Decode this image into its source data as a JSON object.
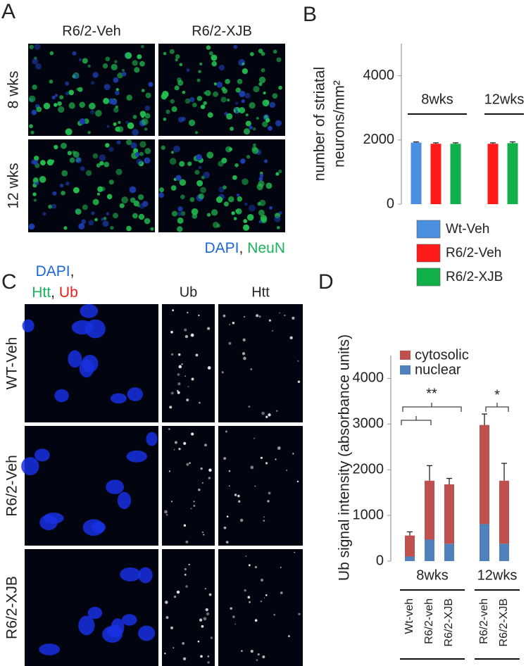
{
  "figure": {
    "panel_labels": [
      "A",
      "B",
      "C",
      "D"
    ],
    "panel_A": {
      "columns": [
        "R6/2-Veh",
        "R6/2-XJB"
      ],
      "rows": [
        "8 wks",
        "12 wks"
      ],
      "stain": [
        {
          "text": "DAPI",
          "color": "#1a66d9"
        },
        {
          "text": ",",
          "color": "#222222"
        },
        {
          "text": "NeuN",
          "color": "#19b35a"
        }
      ]
    },
    "panel_C": {
      "stain": [
        [
          {
            "text": "DAPI",
            "color": "#1a66d9"
          },
          {
            "text": ",",
            "color": "#222222"
          }
        ],
        [
          {
            "text": "Htt",
            "color": "#19b35a"
          },
          {
            "text": ",",
            "color": "#222222"
          },
          {
            "text": "Ub",
            "color": "#e8201a"
          }
        ]
      ],
      "columns": [
        "Ub",
        "Htt"
      ],
      "rows": [
        "WT-Veh",
        "R6/2-Veh",
        "R6/2-XJB"
      ]
    }
  },
  "chart_data": [
    {
      "type": "bar",
      "y_label": [
        "number of striatal",
        "neurons/mm²"
      ],
      "categories": [
        "8wks",
        "12wks"
      ],
      "series": [
        {
          "name": "Wt-Veh",
          "color": "#4a8fe0",
          "values": [
            1920,
            null
          ],
          "errors": [
            20,
            null
          ]
        },
        {
          "name": "R6/2-Veh",
          "color": "#ff1a1a",
          "values": [
            1880,
            1880
          ],
          "errors": [
            30,
            30
          ]
        },
        {
          "name": "R6/2-XJB",
          "color": "#12b04a",
          "values": [
            1880,
            1900
          ],
          "errors": [
            30,
            40
          ]
        }
      ],
      "ylim": [
        0,
        5000
      ],
      "yticks": [
        0,
        2000,
        4000
      ]
    },
    {
      "type": "stacked_bar",
      "y_label": "Ub signal intensity (absorbance units)",
      "groups": [
        {
          "name": "8wks",
          "categories": [
            "Wt-veh",
            "R6/2-veh",
            "R6/2-XJB"
          ]
        },
        {
          "name": "12wks",
          "categories": [
            "R6/2-veh",
            "R6/2-XJB"
          ]
        }
      ],
      "series": [
        {
          "name": "nuclear",
          "color": "#4f81bd",
          "values": [
            100,
            470,
            380,
            810,
            380
          ]
        },
        {
          "name": "cytosolic",
          "color": "#c0504d",
          "values": [
            460,
            1290,
            1300,
            2170,
            1380
          ],
          "errors": [
            80,
            330,
            130,
            240,
            380
          ]
        }
      ],
      "ylim": [
        0,
        4500
      ],
      "yticks": [
        0,
        1000,
        2000,
        3000,
        4000
      ],
      "annotations": [
        "**",
        "*"
      ]
    }
  ]
}
